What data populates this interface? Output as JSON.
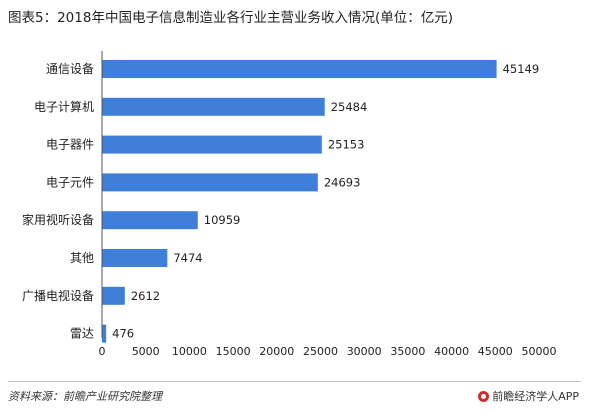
{
  "title": "图表5：2018年中国电子信息制造业各行业主营业务收入情况(单位：亿元)",
  "source": "资料来源：前瞻产业研究院整理",
  "brand": "前瞻经济学人APP",
  "colors": {
    "bar": "#3f7fd9",
    "axis": "#555555",
    "text": "#222222"
  },
  "chart_data": {
    "type": "bar",
    "orientation": "horizontal",
    "title": "图表5：2018年中国电子信息制造业各行业主营业务收入情况(单位：亿元)",
    "categories": [
      "通信设备",
      "电子计算机",
      "电子器件",
      "电子元件",
      "家用视听设备",
      "其他",
      "广播电视设备",
      "雷达"
    ],
    "values": [
      45149,
      25484,
      25153,
      24693,
      10959,
      7474,
      2612,
      476
    ],
    "xlim": [
      0,
      50000
    ],
    "xticks": [
      0,
      5000,
      10000,
      15000,
      20000,
      25000,
      30000,
      35000,
      40000,
      45000,
      50000
    ],
    "grid": false,
    "legend": "none"
  }
}
